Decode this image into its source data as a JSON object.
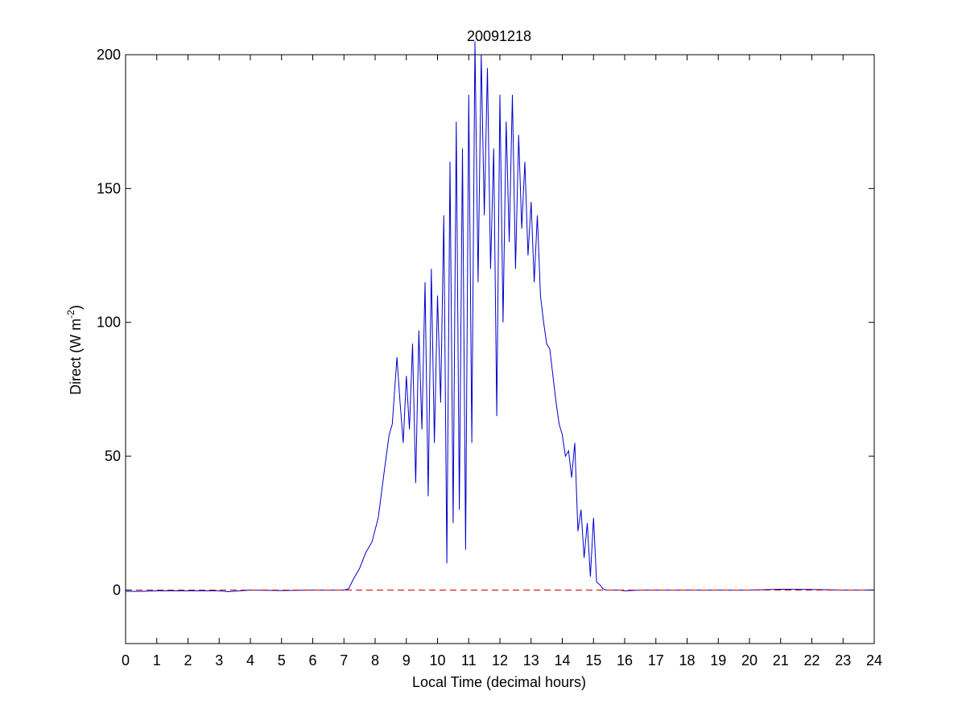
{
  "chart_data": {
    "type": "line",
    "title": "20091218",
    "xlabel": "Local Time (decimal hours)",
    "ylabel": {
      "prefix": "Direct (W m",
      "superscript": "-2",
      "suffix": ")"
    },
    "xlim": [
      0,
      24
    ],
    "ylim": [
      -20,
      200
    ],
    "xticks": [
      "0",
      "1",
      "2",
      "3",
      "4",
      "5",
      "6",
      "7",
      "8",
      "9",
      "10",
      "11",
      "12",
      "13",
      "14",
      "15",
      "16",
      "17",
      "18",
      "19",
      "20",
      "21",
      "22",
      "23",
      "24"
    ],
    "yticks": [
      "0",
      "50",
      "100",
      "150",
      "200"
    ],
    "grid": false,
    "legend": "none",
    "series": [
      {
        "color": "#0000cc",
        "style": "solid",
        "x": [
          0,
          0.5,
          1,
          2,
          3,
          3.3,
          4,
          5,
          6,
          7,
          7.15,
          7.3,
          7.5,
          7.7,
          7.9,
          8.1,
          8.3,
          8.45,
          8.55,
          8.7,
          8.8,
          8.9,
          9,
          9.1,
          9.2,
          9.3,
          9.4,
          9.5,
          9.6,
          9.7,
          9.8,
          9.9,
          10.0,
          10.1,
          10.2,
          10.3,
          10.4,
          10.5,
          10.6,
          10.7,
          10.8,
          10.9,
          11.0,
          11.1,
          11.2,
          11.3,
          11.4,
          11.5,
          11.6,
          11.7,
          11.8,
          11.9,
          12.0,
          12.1,
          12.2,
          12.3,
          12.4,
          12.5,
          12.6,
          12.7,
          12.8,
          12.9,
          13.0,
          13.1,
          13.2,
          13.3,
          13.4,
          13.5,
          13.6,
          13.7,
          13.8,
          13.9,
          14.0,
          14.1,
          14.2,
          14.3,
          14.4,
          14.5,
          14.6,
          14.7,
          14.8,
          14.9,
          15.0,
          15.1,
          15.2,
          15.3,
          15.4,
          15.5,
          15.6,
          15.65,
          15.75,
          15.85,
          16.0,
          16.5,
          17,
          18,
          19,
          20,
          21,
          22,
          23,
          24
        ],
        "y": [
          -0.5,
          -0.5,
          -0.3,
          -0.3,
          -0.3,
          -0.6,
          0,
          -0.2,
          0,
          0,
          0.5,
          4,
          8,
          14,
          18,
          27,
          45,
          58,
          62,
          87,
          70,
          55,
          80,
          60,
          92,
          40,
          97,
          60,
          115,
          35,
          120,
          55,
          110,
          70,
          140,
          10,
          160,
          25,
          175,
          30,
          165,
          15,
          185,
          55,
          205,
          115,
          200,
          140,
          195,
          120,
          165,
          65,
          185,
          100,
          175,
          130,
          185,
          120,
          170,
          135,
          160,
          125,
          145,
          115,
          140,
          110,
          100,
          92,
          90,
          80,
          70,
          62,
          58,
          50,
          52,
          42,
          55,
          22,
          30,
          12,
          25,
          5,
          27,
          3,
          2,
          0.5,
          0,
          0,
          0,
          0,
          0,
          0,
          -0.3,
          0,
          0,
          0,
          0,
          0,
          0.3,
          0.2,
          0,
          0
        ]
      },
      {
        "color": "#cc0000",
        "style": "dashed",
        "x": [
          0,
          24
        ],
        "y": [
          0,
          0
        ]
      }
    ]
  }
}
